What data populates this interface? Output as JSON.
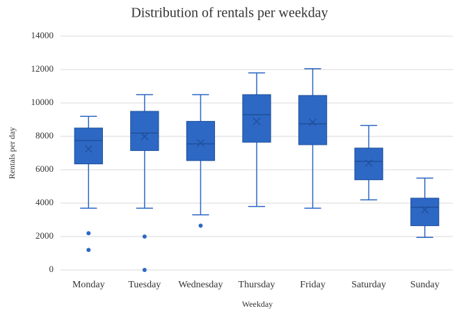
{
  "chart_data": {
    "type": "box",
    "title": "Distribution of rentals per weekday",
    "x_label": "Weekday",
    "y_label": "Rentals per day",
    "categories": [
      "Monday",
      "Tuesday",
      "Wednesday",
      "Thursday",
      "Friday",
      "Saturday",
      "Sunday"
    ],
    "boxes": [
      {
        "min": 3700,
        "q1": 6350,
        "median": 7750,
        "q3": 8500,
        "max": 9200,
        "mean": 7250,
        "outliers": [
          2200,
          1200
        ]
      },
      {
        "min": 3700,
        "q1": 7150,
        "median": 8200,
        "q3": 9500,
        "max": 10500,
        "mean": 8000,
        "outliers": [
          2000,
          0
        ]
      },
      {
        "min": 3300,
        "q1": 6550,
        "median": 7550,
        "q3": 8900,
        "max": 10500,
        "mean": 7600,
        "outliers": [
          2650
        ]
      },
      {
        "min": 3800,
        "q1": 7650,
        "median": 9300,
        "q3": 10500,
        "max": 11800,
        "mean": 8900,
        "outliers": []
      },
      {
        "min": 3700,
        "q1": 7500,
        "median": 8750,
        "q3": 10450,
        "max": 12050,
        "mean": 8850,
        "outliers": []
      },
      {
        "min": 4200,
        "q1": 5400,
        "median": 6500,
        "q3": 7300,
        "max": 8650,
        "mean": 6400,
        "outliers": []
      },
      {
        "min": 1950,
        "q1": 2650,
        "median": 3750,
        "q3": 4300,
        "max": 5500,
        "mean": 3600,
        "outliers": []
      }
    ],
    "color": "#2d68c4",
    "edge_color": "#1f4f9c",
    "ylim": [
      0,
      14000
    ],
    "yticks": [
      0,
      2000,
      4000,
      6000,
      8000,
      10000,
      12000,
      14000
    ],
    "grid": true
  }
}
